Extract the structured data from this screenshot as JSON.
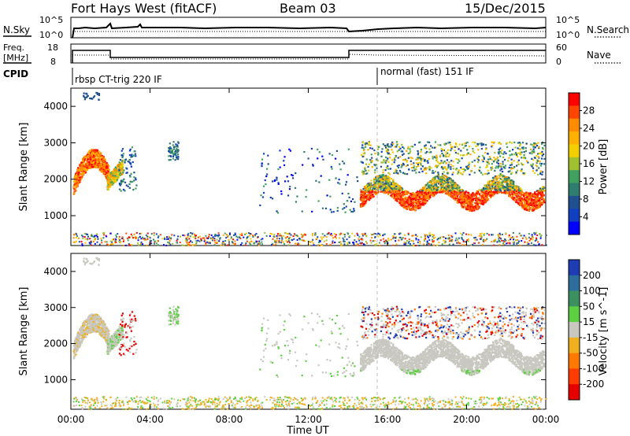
{
  "header": {
    "station": "Fort Hays West (fitACF)",
    "beam": "Beam 03",
    "date": "15/Dec/2015"
  },
  "noise_panel": {
    "left_label": "N.Sky",
    "right_label": "N.Search",
    "left_ticks": [
      "10^5",
      "10^0"
    ],
    "right_ticks": [
      "10^5",
      "10^0"
    ]
  },
  "freq_panel": {
    "left_label_line1": "Freq.",
    "left_label_line2": "[MHz]",
    "right_label": "Nave",
    "left_ticks": [
      "18",
      "8"
    ],
    "right_ticks": [
      "60",
      "0"
    ]
  },
  "cpid": {
    "label": "CPID",
    "segments": [
      "rbsp CT-trig 220 IF",
      "normal (fast) 151 IF"
    ]
  },
  "x_axis": {
    "label": "Time UT",
    "ticks": [
      "00:00",
      "04:00",
      "08:00",
      "12:00",
      "16:00",
      "20:00",
      "00:00"
    ]
  },
  "chart_data": [
    {
      "type": "heatmap",
      "title": "Power",
      "xlabel": "Time UT",
      "ylabel": "Slant Range [km]",
      "y_ticks": [
        1000,
        2000,
        3000,
        4000
      ],
      "colorbar_label": "Power [dB]",
      "colorbar_ticks": [
        28,
        24,
        20,
        16,
        12,
        8,
        4
      ],
      "colorbar_colors": [
        "#ff0000",
        "#ff4500",
        "#ff8c00",
        "#ffb000",
        "#f2d000",
        "#a0c030",
        "#40a060",
        "#2e7d6e",
        "#205090",
        "#1040c0",
        "#0000ff"
      ]
    },
    {
      "type": "heatmap",
      "title": "Velocity",
      "xlabel": "Time UT",
      "ylabel": "Slant Range [km]",
      "y_ticks": [
        1000,
        2000,
        3000,
        4000
      ],
      "colorbar_label": "Velocity [m s^-1]",
      "colorbar_ticks": [
        200,
        100,
        50,
        15,
        -15,
        -50,
        -100,
        -200
      ],
      "colorbar_colors": [
        "#1e3cb4",
        "#2e6e9c",
        "#3c9060",
        "#5cd040",
        "#c8c8c0",
        "#f0b020",
        "#ff7800",
        "#ff3c00",
        "#e60000"
      ]
    }
  ],
  "colors": {
    "scatter_grey": "#c8c8c0",
    "axis": "#000000"
  }
}
